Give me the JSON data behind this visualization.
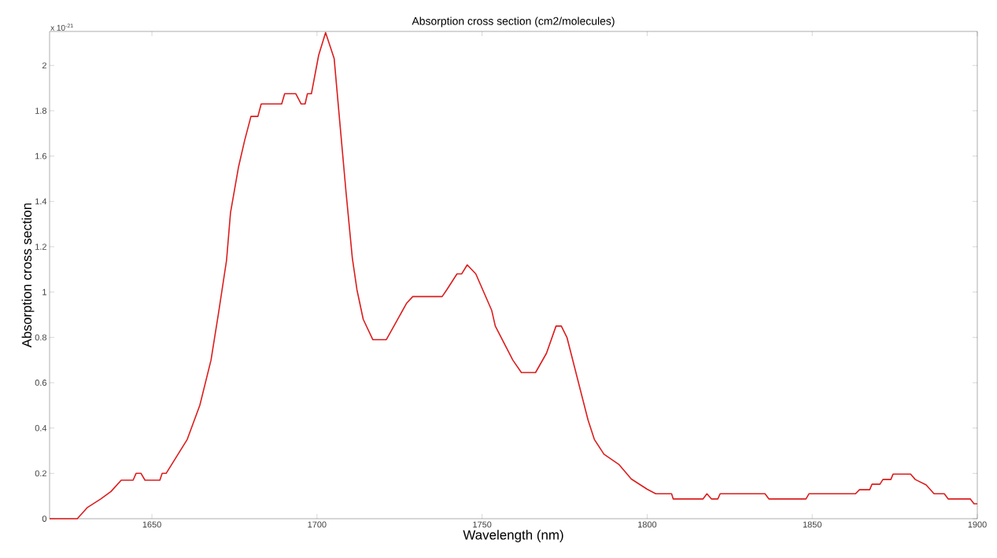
{
  "chart_data": {
    "type": "line",
    "title": "Absorption cross section (cm2/molecules)",
    "xlabel": "Wavelength (nm)",
    "ylabel": "Absorption cross section",
    "annotations": [
      "x 10$^{-21}$"
    ],
    "xlim": [
      1619,
      1900
    ],
    "ylim": [
      0,
      2.15
    ],
    "xticks": [
      1650,
      1700,
      1750,
      1800,
      1850,
      1900
    ],
    "yticks": [
      0,
      0.2,
      0.4,
      0.6,
      0.8,
      1,
      1.2,
      1.4,
      1.6,
      1.8,
      2
    ],
    "grid": false,
    "marker": "none",
    "line_style": "solid",
    "series": [
      {
        "color": "#dc1c1c",
        "x": [
          1619,
          1627.4,
          1630.5,
          1634.5,
          1637.6,
          1640.7,
          1644.3,
          1645.2,
          1646.7,
          1647.9,
          1652.4,
          1653.1,
          1654.3,
          1660.7,
          1664.5,
          1667.9,
          1670.2,
          1672.6,
          1673.8,
          1676.2,
          1678.1,
          1680,
          1682.1,
          1683.1,
          1689.3,
          1690.2,
          1693.6,
          1695.2,
          1696.4,
          1697.1,
          1698.3,
          1700.5,
          1702.6,
          1705.2,
          1706.9,
          1708.8,
          1710.7,
          1712.1,
          1714,
          1716.9,
          1721,
          1723.3,
          1727.1,
          1729,
          1737.9,
          1739.3,
          1742.4,
          1743.8,
          1745.5,
          1748.1,
          1752.9,
          1754,
          1759.3,
          1761.9,
          1766.2,
          1769.5,
          1772.4,
          1774,
          1775.7,
          1782.1,
          1784,
          1786.9,
          1791.4,
          1795.2,
          1800,
          1802.6,
          1807.4,
          1807.9,
          1816.9,
          1818.1,
          1819.5,
          1821.4,
          1822.1,
          1835.7,
          1836.9,
          1848.1,
          1849,
          1863.1,
          1864.3,
          1867.4,
          1868.1,
          1870.5,
          1871.4,
          1873.8,
          1874.5,
          1879.8,
          1881.2,
          1884.5,
          1886.9,
          1890,
          1891.2,
          1897.9,
          1899,
          1900
        ],
        "values": [
          0,
          0,
          0.05,
          0.087,
          0.12,
          0.17,
          0.17,
          0.2,
          0.2,
          0.17,
          0.17,
          0.2,
          0.2,
          0.35,
          0.5,
          0.7,
          0.91,
          1.14,
          1.35,
          1.55,
          1.67,
          1.775,
          1.775,
          1.83,
          1.83,
          1.875,
          1.875,
          1.83,
          1.83,
          1.875,
          1.875,
          2.045,
          2.145,
          2.03,
          1.75,
          1.44,
          1.15,
          1.01,
          0.88,
          0.79,
          0.79,
          0.85,
          0.95,
          0.98,
          0.98,
          1.01,
          1.08,
          1.08,
          1.12,
          1.08,
          0.92,
          0.85,
          0.7,
          0.645,
          0.645,
          0.73,
          0.85,
          0.85,
          0.8,
          0.435,
          0.35,
          0.285,
          0.24,
          0.175,
          0.13,
          0.11,
          0.11,
          0.087,
          0.087,
          0.11,
          0.087,
          0.087,
          0.11,
          0.11,
          0.087,
          0.087,
          0.11,
          0.11,
          0.128,
          0.128,
          0.152,
          0.152,
          0.173,
          0.173,
          0.197,
          0.197,
          0.173,
          0.149,
          0.11,
          0.11,
          0.087,
          0.087,
          0.066,
          0.066
        ]
      }
    ]
  }
}
